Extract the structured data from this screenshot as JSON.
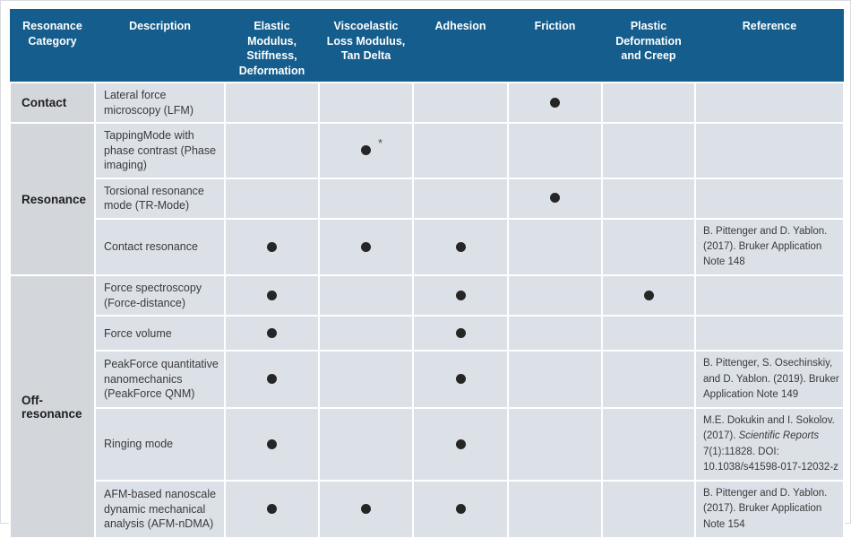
{
  "table": {
    "columns": [
      {
        "key": "category",
        "label": "Resonance Category"
      },
      {
        "key": "description",
        "label": "Description"
      },
      {
        "key": "elastic",
        "label": "Elastic Modulus, Stiffness, Deformation"
      },
      {
        "key": "viscoelastic",
        "label": "Viscoelastic Loss Modulus, Tan Delta"
      },
      {
        "key": "adhesion",
        "label": "Adhesion"
      },
      {
        "key": "friction",
        "label": "Friction"
      },
      {
        "key": "plastic",
        "label": "Plastic Deformation and Creep"
      },
      {
        "key": "reference",
        "label": "Reference"
      }
    ],
    "capability_keys": [
      "elastic",
      "viscoelastic",
      "adhesion",
      "friction",
      "plastic"
    ],
    "footnote_marker": "*",
    "dot_icon": "filled-circle",
    "groups": [
      {
        "category": "Contact",
        "rows": [
          {
            "description": "Lateral force microscopy (LFM)",
            "dots": [
              "friction"
            ],
            "asterisk": null,
            "reference": []
          }
        ]
      },
      {
        "category": "Resonance",
        "rows": [
          {
            "description": "TappingMode with phase contrast (Phase imaging)",
            "dots": [
              "viscoelastic"
            ],
            "asterisk": "viscoelastic",
            "reference": []
          },
          {
            "description": "Torsional resonance mode (TR-Mode)",
            "dots": [
              "friction"
            ],
            "asterisk": null,
            "reference": []
          },
          {
            "description": "Contact resonance",
            "dots": [
              "elastic",
              "viscoelastic",
              "adhesion"
            ],
            "asterisk": null,
            "reference": [
              {
                "text": "B. Pittenger and D. Yablon. (2017). Bruker Application Note 148",
                "italic": false
              }
            ]
          }
        ]
      },
      {
        "category": "Off-resonance",
        "rows": [
          {
            "description": "Force spectroscopy (Force-distance)",
            "dots": [
              "elastic",
              "adhesion",
              "plastic"
            ],
            "asterisk": null,
            "reference": []
          },
          {
            "description": "Force volume",
            "dots": [
              "elastic",
              "adhesion"
            ],
            "asterisk": null,
            "reference": []
          },
          {
            "description": "PeakForce quantitative nanomechanics (PeakForce QNM)",
            "dots": [
              "elastic",
              "adhesion"
            ],
            "asterisk": null,
            "reference": [
              {
                "text": "B. Pittenger, S. Osechinskiy, and D. Yablon. (2019). Bruker Application Note 149",
                "italic": false
              }
            ]
          },
          {
            "description": "Ringing mode",
            "dots": [
              "elastic",
              "adhesion"
            ],
            "asterisk": null,
            "reference": [
              {
                "text": "M.E. Dokukin and I. Sokolov. (2017). ",
                "italic": false
              },
              {
                "text": "Scientific Reports",
                "italic": true
              },
              {
                "text": " 7(1):11828. DOI: 10.1038/s41598-017-12032-z",
                "italic": false
              }
            ]
          },
          {
            "description": "AFM-based nanoscale dynamic mechanical analysis (AFM-nDMA)",
            "dots": [
              "elastic",
              "viscoelastic",
              "adhesion"
            ],
            "asterisk": null,
            "reference": [
              {
                "text": "B. Pittenger and D. Yablon. (2017). Bruker Application Note 154",
                "italic": false
              }
            ]
          }
        ]
      }
    ]
  },
  "colors": {
    "header_bg": "#155d8c",
    "header_text": "#ffffff",
    "category_bg": "#d3d7dc",
    "cell_bg": "#dce1e8",
    "dot": "#262626",
    "body_text": "#3a3a3a",
    "grid": "#ffffff"
  }
}
